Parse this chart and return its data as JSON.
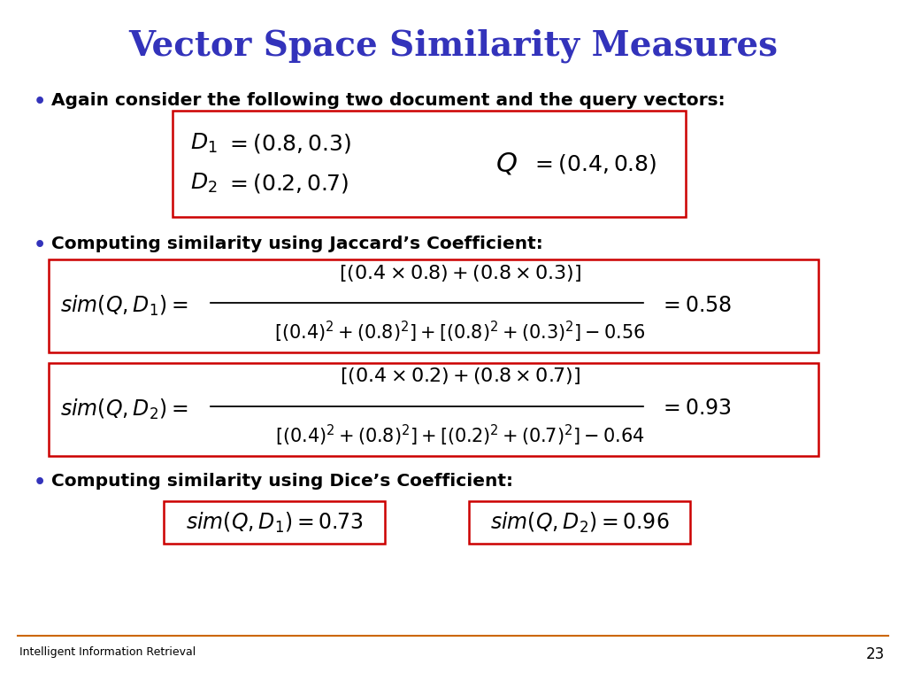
{
  "title": "Vector Space Similarity Measures",
  "title_color": "#3333BB",
  "title_fontsize": 28,
  "background_color": "#FFFFFF",
  "bullet_color": "#3333BB",
  "bullet_fontsize": 14.5,
  "bullet1": "Again consider the following two document and the query vectors:",
  "bullet2": "Computing similarity using Jaccard’s Coefficient:",
  "bullet3": "Computing similarity using Dice’s Coefficient:",
  "box_edge_color": "#CC0000",
  "box_facecolor": "#FFFFFF",
  "footer_text": "Intelligent Information Retrieval",
  "page_number": "23",
  "footer_line_color": "#CC6600"
}
